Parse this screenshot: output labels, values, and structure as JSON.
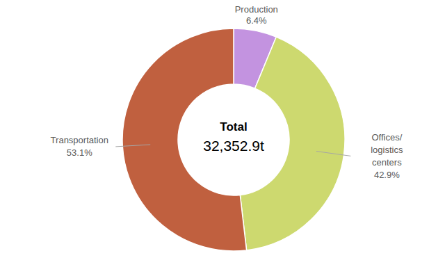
{
  "chart_data": {
    "type": "donut",
    "categories": [
      "Production",
      "Offices/ logistics centers",
      "Transportation"
    ],
    "values": [
      6.4,
      42.9,
      53.1
    ],
    "value_labels": [
      "6.4%",
      "42.9%",
      "53.1%"
    ],
    "colors": [
      "#c393e0",
      "#cdd96f",
      "#c0603f"
    ],
    "data_labels": true,
    "annotations": [
      "Total",
      "32,352.9t"
    ]
  }
}
